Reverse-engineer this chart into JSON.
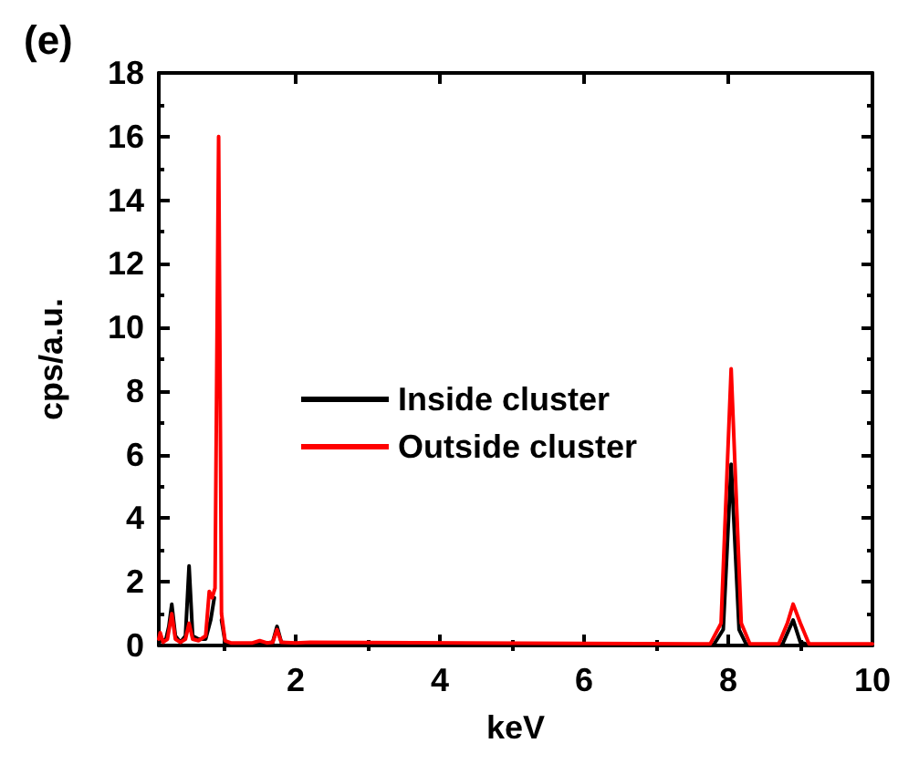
{
  "chart_data": {
    "type": "line",
    "title": "(e)",
    "xlabel": "keV",
    "ylabel": "cps/a.u.",
    "xlim": [
      0.1,
      10
    ],
    "xticks": [
      2,
      4,
      6,
      8,
      10
    ],
    "ylim": [
      0,
      18
    ],
    "yticks": [
      0,
      2,
      4,
      6,
      8,
      10,
      12,
      14,
      16,
      18
    ],
    "grid": false,
    "legend": "center left",
    "marker": "none",
    "line_style": "solid",
    "series": [
      {
        "name": "Inside cluster",
        "color": "#000000",
        "x": [
          0.1,
          0.2,
          0.24,
          0.28,
          0.33,
          0.4,
          0.47,
          0.52,
          0.57,
          0.65,
          0.75,
          0.82,
          0.87,
          0.93,
          0.97,
          1.02,
          1.1,
          1.5,
          1.68,
          1.74,
          1.8,
          2.0,
          7.8,
          7.93,
          8.04,
          8.15,
          8.25,
          8.75,
          8.9,
          9.0,
          9.1,
          10
        ],
        "values": [
          0.1,
          0.2,
          0.6,
          1.3,
          0.3,
          0.1,
          0.3,
          2.5,
          0.3,
          0.2,
          0.2,
          0.8,
          1.5,
          null,
          0.8,
          0.1,
          0.05,
          0.05,
          0.1,
          0.6,
          0.1,
          0.05,
          0.03,
          0.5,
          5.7,
          0.5,
          0.03,
          0.03,
          0.8,
          0.1,
          0.03,
          0.03
        ]
      },
      {
        "name": "Outside cluster",
        "color": "#ff0000",
        "x": [
          0.1,
          0.12,
          0.16,
          0.22,
          0.28,
          0.33,
          0.4,
          0.47,
          0.52,
          0.57,
          0.65,
          0.75,
          0.8,
          0.84,
          0.88,
          0.93,
          0.97,
          1.02,
          1.1,
          1.4,
          1.5,
          1.6,
          1.68,
          1.74,
          1.8,
          2.0,
          2.2,
          7.75,
          7.9,
          8.04,
          8.18,
          8.3,
          8.7,
          8.82,
          8.9,
          9.0,
          9.12,
          10
        ],
        "values": [
          0.2,
          0.4,
          0.1,
          0.2,
          1.0,
          0.2,
          0.1,
          0.2,
          0.7,
          0.2,
          0.15,
          0.3,
          1.7,
          1.5,
          1.8,
          16,
          1.0,
          0.15,
          0.08,
          0.08,
          0.15,
          0.08,
          0.1,
          0.5,
          0.1,
          0.08,
          0.1,
          0.05,
          0.7,
          8.7,
          0.7,
          0.05,
          0.05,
          0.7,
          1.3,
          0.7,
          0.05,
          0.05
        ]
      }
    ]
  }
}
